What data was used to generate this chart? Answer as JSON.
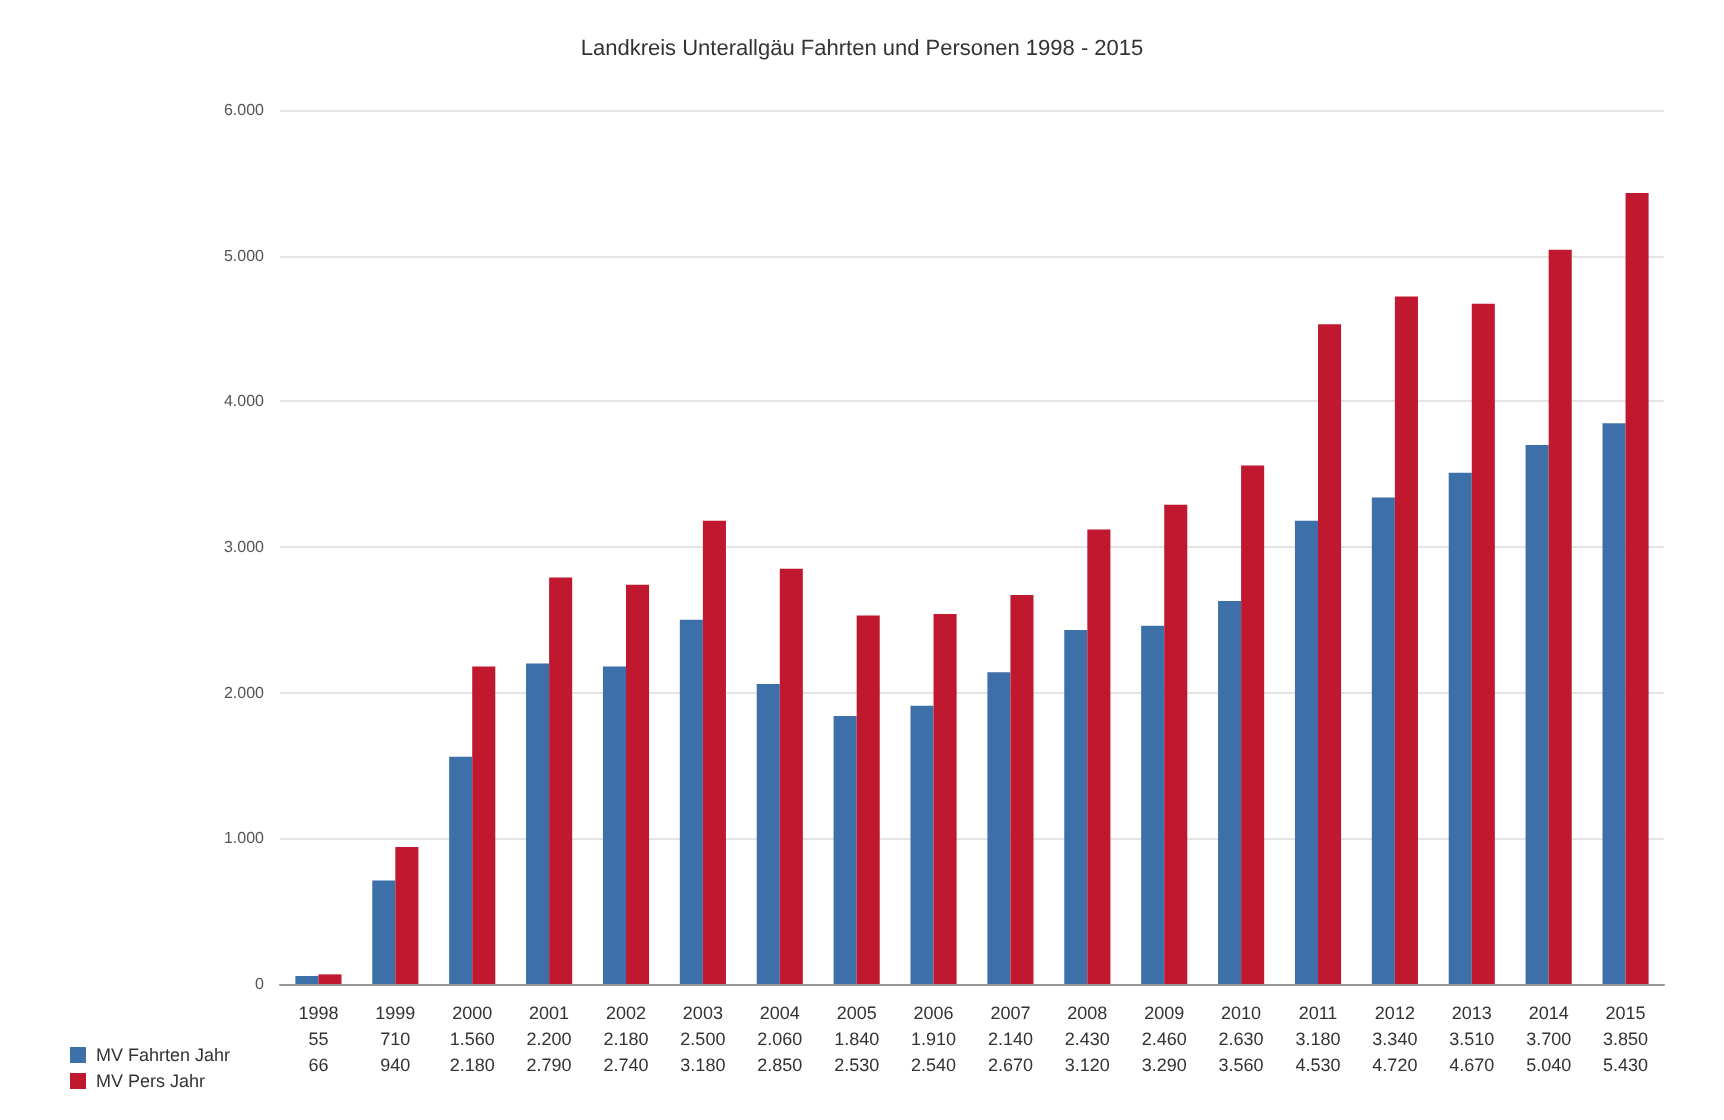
{
  "chart_data": {
    "type": "bar",
    "title": "Landkreis Unterallgäu Fahrten und Personen 1998 - 2015",
    "categories": [
      "1998",
      "1999",
      "2000",
      "2001",
      "2002",
      "2003",
      "2004",
      "2005",
      "2006",
      "2007",
      "2008",
      "2009",
      "2010",
      "2011",
      "2012",
      "2013",
      "2014",
      "2015"
    ],
    "series": [
      {
        "name": "MV Fahrten Jahr",
        "color": "#3d6fa8",
        "values": [
          55,
          710,
          1560,
          2200,
          2180,
          2500,
          2060,
          1840,
          1910,
          2140,
          2430,
          2460,
          2630,
          3180,
          3340,
          3510,
          3700,
          3850
        ],
        "value_labels": [
          "55",
          "710",
          "1.560",
          "2.200",
          "2.180",
          "2.500",
          "2.060",
          "1.840",
          "1.910",
          "2.140",
          "2.430",
          "2.460",
          "2.630",
          "3.180",
          "3.340",
          "3.510",
          "3.700",
          "3.850"
        ]
      },
      {
        "name": "MV Pers Jahr",
        "color": "#c0182f",
        "values": [
          66,
          940,
          2180,
          2790,
          2740,
          3180,
          2850,
          2530,
          2540,
          2670,
          3120,
          3290,
          3560,
          4530,
          4720,
          4670,
          5040,
          5430
        ],
        "value_labels": [
          "66",
          "940",
          "2.180",
          "2.790",
          "2.740",
          "3.180",
          "2.850",
          "2.530",
          "2.540",
          "2.670",
          "3.120",
          "3.290",
          "3.560",
          "4.530",
          "4.720",
          "4.670",
          "5.040",
          "5.430"
        ]
      }
    ],
    "ylim": [
      0,
      6000
    ],
    "yticks": [
      0,
      {
        "value": 1000,
        "label": "1.000"
      },
      {
        "value": 2000,
        "label": "2.000"
      },
      {
        "value": 3000,
        "label": "3.000"
      },
      {
        "value": 4000,
        "label": "4.000"
      },
      {
        "value": 5000,
        "label": "5.000"
      },
      {
        "value": 6000,
        "label": "6.000"
      }
    ],
    "grid": "y",
    "legend": "bottom left"
  }
}
